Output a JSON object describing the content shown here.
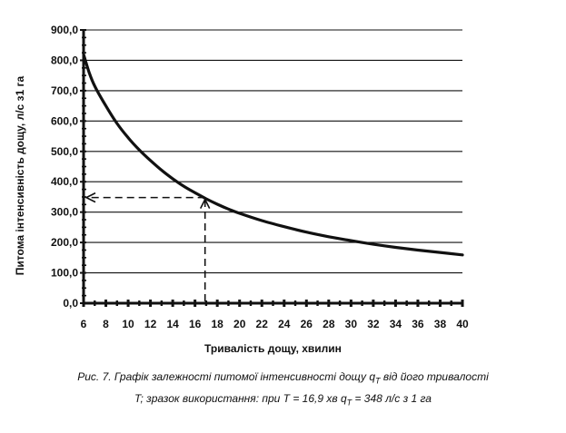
{
  "chart_data": {
    "type": "line",
    "xlabel": "Тривалість дощу, хвилин",
    "ylabel": "Питома інтенсивність дощу, л/с з1 га",
    "xlim": [
      6,
      40
    ],
    "ylim": [
      0,
      900
    ],
    "x_ticks": [
      "6",
      "8",
      "10",
      "12",
      "14",
      "16",
      "18",
      "20",
      "22",
      "24",
      "26",
      "28",
      "30",
      "32",
      "34",
      "36",
      "38",
      "40"
    ],
    "y_ticks": [
      "0,0",
      "100,0",
      "200,0",
      "300,0",
      "400,0",
      "500,0",
      "600,0",
      "700,0",
      "800,0",
      "900,0"
    ],
    "grid": "horizontal",
    "series": [
      {
        "x": [
          6,
          6.5,
          7,
          8,
          9,
          10,
          11,
          12,
          13,
          14,
          15,
          16,
          17,
          18,
          19,
          20,
          22,
          24,
          26,
          28,
          30,
          32,
          34,
          36,
          38,
          40
        ],
        "y": [
          820,
          760,
          715,
          650,
          592,
          545,
          505,
          470,
          438,
          410,
          385,
          364,
          344,
          326,
          310,
          296,
          272,
          252,
          234,
          219,
          206,
          194,
          184,
          175,
          167,
          159
        ]
      }
    ],
    "example": {
      "x": 16.9,
      "y": 348
    }
  },
  "caption": {
    "line1_prefix": "Рис. 7. Графік залежності питомої інтенсивності дощу q",
    "line1_sub": "T",
    "line1_suffix": " від його тривалості",
    "line2_prefix": "T;  зразок використання: при T = 16,9 хв q",
    "line2_sub": "T",
    "line2_suffix": " = 348 л/с з 1 га"
  }
}
